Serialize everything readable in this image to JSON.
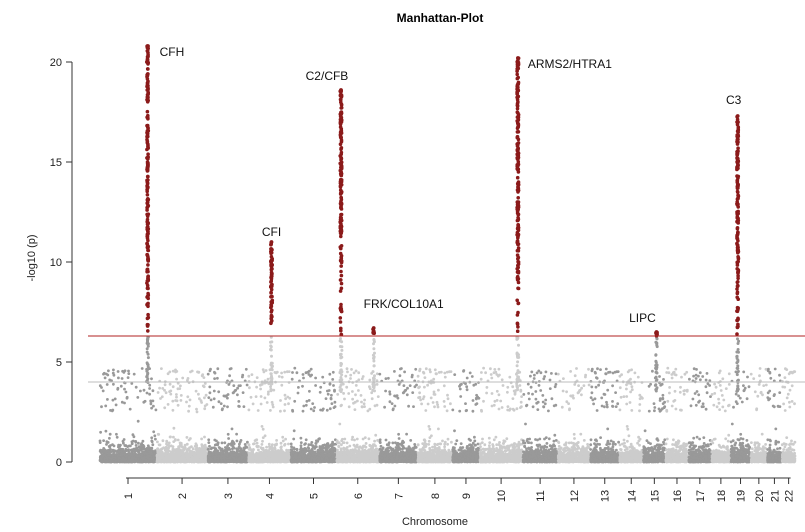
{
  "chart_data": {
    "type": "scatter",
    "title": "Manhattan-Plot",
    "xlabel": "Chromosome",
    "ylabel": "-log10 (p)",
    "ylim": [
      0,
      21
    ],
    "yticks": [
      0,
      5,
      10,
      15,
      20
    ],
    "chromosomes": [
      "1",
      "2",
      "3",
      "4",
      "5",
      "6",
      "7",
      "8",
      "9",
      "10",
      "11",
      "12",
      "13",
      "14",
      "15",
      "16",
      "17",
      "18",
      "19",
      "20",
      "21",
      "22"
    ],
    "chromosome_widths": [
      1.23,
      1.1,
      0.87,
      0.91,
      0.98,
      0.92,
      0.82,
      0.74,
      0.58,
      0.92,
      0.75,
      0.69,
      0.62,
      0.5,
      0.47,
      0.48,
      0.48,
      0.4,
      0.42,
      0.34,
      0.3,
      0.28
    ],
    "significance_threshold": 6.3,
    "suggestive_threshold": 4.0,
    "colors": {
      "dark": "#999999",
      "light": "#cccccc",
      "significant": "#8b1a1a",
      "threshold_line": "#b22222",
      "suggestive_line": "#bdbdbd"
    },
    "peaks": [
      {
        "label": "CFH",
        "chromosome": "1",
        "position": 0.85,
        "max_y": 20.8
      },
      {
        "label": "CFI",
        "chromosome": "4",
        "position": 0.55,
        "max_y": 11.0
      },
      {
        "label": "C2/CFB",
        "chromosome": "6",
        "position": 0.1,
        "max_y": 18.6
      },
      {
        "label": "FRK/COL10A1",
        "chromosome": "6",
        "position": 0.88,
        "max_y": 6.7
      },
      {
        "label": "ARMS2/HTRA1",
        "chromosome": "10",
        "position": 0.9,
        "max_y": 20.2
      },
      {
        "label": "LIPC",
        "chromosome": "15",
        "position": 0.6,
        "max_y": 6.5
      },
      {
        "label": "C3",
        "chromosome": "19",
        "position": 0.35,
        "max_y": 17.3
      }
    ]
  }
}
